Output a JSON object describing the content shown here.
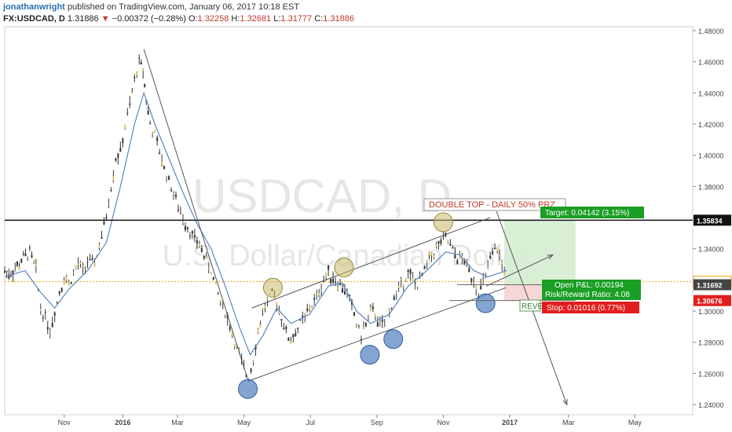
{
  "header": {
    "author": "jonathanwright",
    "published": "published on TradingView.com, January 06, 2017 10:18 EST",
    "symbol": "FX:USDCAD, D",
    "last": "1.31886",
    "change": "−0.00372 (−0.28%)",
    "open_label": "O:",
    "open": "1.32258",
    "high_label": "H:",
    "high": "1.32681",
    "low_label": "L:",
    "low": "1.31777",
    "close_label": "C:",
    "close": "1.31886"
  },
  "watermark": {
    "symbol": "USDCAD, D",
    "name": "U.S. Dollar/Canadian Dollar"
  },
  "chart_data": {
    "type": "line",
    "y_ticks": [
      "1.48000",
      "1.46000",
      "1.44000",
      "1.42000",
      "1.40000",
      "1.38000",
      "1.36000",
      "1.34000",
      "1.32000",
      "1.30000",
      "1.28000",
      "1.26000",
      "1.24000"
    ],
    "ylim": [
      1.2335,
      1.4825
    ],
    "x_ticks": [
      {
        "label": "Nov",
        "t": 3
      },
      {
        "label": "2016",
        "t": 10.5
      },
      {
        "label": "Mar",
        "t": 17.5
      },
      {
        "label": "May",
        "t": 26
      },
      {
        "label": "Jul",
        "t": 34.5
      },
      {
        "label": "Sep",
        "t": 43
      },
      {
        "label": "Nov",
        "t": 51.5
      },
      {
        "label": "2017",
        "t": 60
      },
      {
        "label": "Mar",
        "t": 67.5
      },
      {
        "label": "May",
        "t": 76
      }
    ],
    "xlim": [
      -4.6,
      83.4
    ],
    "bold_ticks": [
      "2016",
      "2017"
    ],
    "series": [
      {
        "values": [
          [
            -4.6,
            1.326
          ],
          [
            -3.8,
            1.324
          ],
          [
            -3.0,
            1.328
          ],
          [
            -2.2,
            1.334
          ],
          [
            -1.4,
            1.338
          ],
          [
            -0.6,
            1.326
          ],
          [
            0.0,
            1.302
          ],
          [
            0.6,
            1.296
          ],
          [
            1.2,
            1.288
          ],
          [
            1.8,
            1.3
          ],
          [
            2.4,
            1.312
          ],
          [
            3.0,
            1.322
          ],
          [
            3.6,
            1.318
          ],
          [
            4.2,
            1.324
          ],
          [
            4.8,
            1.33
          ],
          [
            5.4,
            1.326
          ],
          [
            6.0,
            1.332
          ],
          [
            6.6,
            1.33
          ],
          [
            7.2,
            1.336
          ],
          [
            7.8,
            1.348
          ],
          [
            8.4,
            1.362
          ],
          [
            9.0,
            1.38
          ],
          [
            9.6,
            1.398
          ],
          [
            10.2,
            1.402
          ],
          [
            10.8,
            1.418
          ],
          [
            11.4,
            1.432
          ],
          [
            12.0,
            1.448
          ],
          [
            12.6,
            1.46
          ],
          [
            13.1,
            1.455
          ],
          [
            13.5,
            1.436
          ],
          [
            14.0,
            1.42
          ],
          [
            14.6,
            1.412
          ],
          [
            15.2,
            1.402
          ],
          [
            15.8,
            1.392
          ],
          [
            16.4,
            1.384
          ],
          [
            17.0,
            1.376
          ],
          [
            17.6,
            1.366
          ],
          [
            18.2,
            1.36
          ],
          [
            18.8,
            1.354
          ],
          [
            19.4,
            1.348
          ],
          [
            20.0,
            1.344
          ],
          [
            20.6,
            1.34
          ],
          [
            21.2,
            1.332
          ],
          [
            21.8,
            1.326
          ],
          [
            22.4,
            1.316
          ],
          [
            23.0,
            1.306
          ],
          [
            23.6,
            1.3
          ],
          [
            24.2,
            1.29
          ],
          [
            24.8,
            1.28
          ],
          [
            25.4,
            1.272
          ],
          [
            26.0,
            1.262
          ],
          [
            26.6,
            1.258
          ],
          [
            27.2,
            1.27
          ],
          [
            27.8,
            1.286
          ],
          [
            28.4,
            1.3
          ],
          [
            29.0,
            1.306
          ],
          [
            29.6,
            1.31
          ],
          [
            30.2,
            1.306
          ],
          [
            30.8,
            1.296
          ],
          [
            31.4,
            1.286
          ],
          [
            32.0,
            1.282
          ],
          [
            32.6,
            1.286
          ],
          [
            33.2,
            1.292
          ],
          [
            33.8,
            1.296
          ],
          [
            34.4,
            1.302
          ],
          [
            35.0,
            1.306
          ],
          [
            35.6,
            1.312
          ],
          [
            36.2,
            1.32
          ],
          [
            36.8,
            1.324
          ],
          [
            37.4,
            1.322
          ],
          [
            38.0,
            1.318
          ],
          [
            38.6,
            1.316
          ],
          [
            39.2,
            1.312
          ],
          [
            39.8,
            1.302
          ],
          [
            40.4,
            1.292
          ],
          [
            41.0,
            1.284
          ],
          [
            41.6,
            1.292
          ],
          [
            42.2,
            1.3
          ],
          [
            42.8,
            1.298
          ],
          [
            43.4,
            1.292
          ],
          [
            44.0,
            1.29
          ],
          [
            44.6,
            1.3
          ],
          [
            45.2,
            1.308
          ],
          [
            45.8,
            1.314
          ],
          [
            46.4,
            1.32
          ],
          [
            47.0,
            1.324
          ],
          [
            47.6,
            1.32
          ],
          [
            48.2,
            1.316
          ],
          [
            48.8,
            1.322
          ],
          [
            49.4,
            1.33
          ],
          [
            50.0,
            1.336
          ],
          [
            50.6,
            1.34
          ],
          [
            51.2,
            1.344
          ],
          [
            51.8,
            1.346
          ],
          [
            52.4,
            1.342
          ],
          [
            53.0,
            1.336
          ],
          [
            53.6,
            1.334
          ],
          [
            54.2,
            1.332
          ],
          [
            54.8,
            1.326
          ],
          [
            55.4,
            1.32
          ],
          [
            56.0,
            1.312
          ],
          [
            56.6,
            1.318
          ],
          [
            57.2,
            1.328
          ],
          [
            57.8,
            1.336
          ],
          [
            58.4,
            1.34
          ],
          [
            59.0,
            1.33
          ],
          [
            59.6,
            1.324
          ]
        ]
      }
    ],
    "ma_values": [
      [
        -4.6,
        1.322
      ],
      [
        -2.0,
        1.326
      ],
      [
        0.0,
        1.312
      ],
      [
        1.8,
        1.302
      ],
      [
        3.6,
        1.314
      ],
      [
        6.0,
        1.326
      ],
      [
        8.4,
        1.344
      ],
      [
        10.2,
        1.38
      ],
      [
        12.0,
        1.42
      ],
      [
        13.2,
        1.44
      ],
      [
        14.6,
        1.42
      ],
      [
        16.4,
        1.398
      ],
      [
        18.2,
        1.376
      ],
      [
        20.0,
        1.356
      ],
      [
        21.8,
        1.34
      ],
      [
        23.6,
        1.316
      ],
      [
        25.4,
        1.29
      ],
      [
        26.8,
        1.272
      ],
      [
        28.4,
        1.284
      ],
      [
        30.2,
        1.302
      ],
      [
        32.0,
        1.292
      ],
      [
        34.4,
        1.298
      ],
      [
        36.8,
        1.316
      ],
      [
        38.6,
        1.318
      ],
      [
        40.4,
        1.3
      ],
      [
        42.2,
        1.292
      ],
      [
        44.6,
        1.298
      ],
      [
        47.0,
        1.316
      ],
      [
        49.4,
        1.326
      ],
      [
        51.8,
        1.338
      ],
      [
        53.6,
        1.336
      ],
      [
        55.4,
        1.326
      ],
      [
        57.2,
        1.322
      ],
      [
        59.6,
        1.326
      ]
    ],
    "trend_lines": [
      {
        "from": [
          13.2,
          1.468
        ],
        "to": [
          26.5,
          1.256
        ]
      },
      {
        "from": [
          26.5,
          1.255
        ],
        "to": [
          59.5,
          1.315
        ]
      },
      {
        "from": [
          27.0,
          1.302
        ],
        "to": [
          57.5,
          1.36
        ]
      }
    ],
    "projection_lines": [
      {
        "from": [
          57.0,
          1.316
        ],
        "to": [
          65.5,
          1.336
        ]
      },
      {
        "from": [
          58.3,
          1.364
        ],
        "to": [
          67.3,
          1.24
        ]
      }
    ],
    "resistance_level": 1.35834,
    "current_level": 1.31886,
    "circles_top": [
      [
        29.7,
        1.315
      ],
      [
        38.8,
        1.328
      ],
      [
        51.5,
        1.357
      ]
    ],
    "circles_bottom": [
      [
        26.5,
        1.25
      ],
      [
        42.1,
        1.272
      ],
      [
        45.1,
        1.282
      ],
      [
        56.9,
        1.305
      ]
    ],
    "position_box": {
      "t0": 59.3,
      "t1": 68.4,
      "entry": 1.31692,
      "target": 1.35834,
      "stop": 1.30676
    },
    "price_labels": [
      "1.35834",
      "1.31886",
      "1.31692",
      "1.30676"
    ],
    "annotations": {
      "double_top": "DOUBLE TOP - DAILY 50% PRZ",
      "target": "Target: 0.04142 (3.15%)",
      "open_pl": "Open P&L: 0.00194",
      "risk_reward": "Risk/Reward Ratio: 4.08",
      "stop": "Stop: 0.01016 (0.77%)",
      "reversal": "REVE"
    },
    "colors": {
      "bull": "#333333",
      "bear": "#333333",
      "ma": "#5b86c0",
      "trend": "#555555",
      "resistance": "#111111",
      "current": "#f0a500",
      "circle_top": "#c8b86b",
      "circle_bottom": "#5b87c2",
      "profit_zone": "#d4ecd0",
      "loss_zone": "#f5d2d2",
      "target_bg": "#1a9e23",
      "stop_bg": "#e31d1d",
      "dbl_text": "#c0392b"
    }
  }
}
